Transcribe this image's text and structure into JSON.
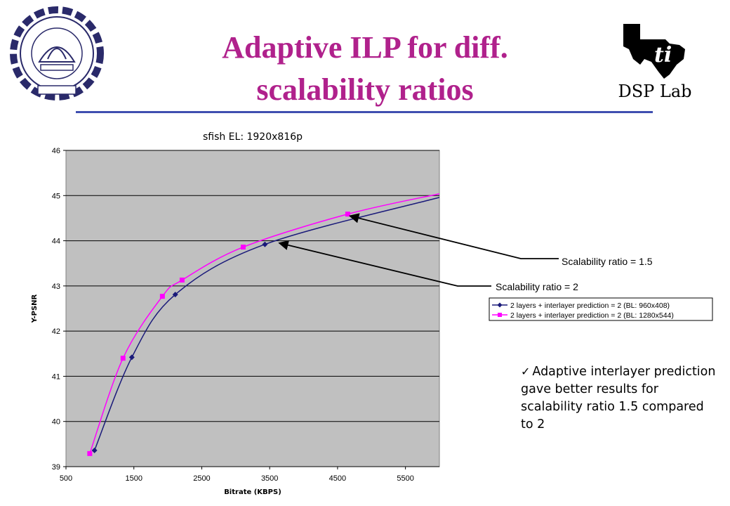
{
  "slide": {
    "title_line1": "Adaptive ILP for diff.",
    "title_line2": "scalability ratios",
    "logo_left_text": "INDIAN INSTITUTE OF TECHNOLOGY BOMBAY",
    "logo_right_text": "DSP Lab",
    "bullet_text": "Adaptive interlayer prediction gave better results for scalability ratio 1.5 compared to 2",
    "colors": {
      "title": "#b0218c",
      "rule": "#3f4fb0"
    }
  },
  "chart_data": {
    "type": "line",
    "title": "sfish EL: 1920x816p",
    "xlabel": "Bitrate (KBPS)",
    "ylabel": "Y-PSNR",
    "xlim": [
      500,
      6000
    ],
    "ylim": [
      39,
      46
    ],
    "x_ticks": [
      500,
      1500,
      2500,
      3500,
      4500,
      5500
    ],
    "y_ticks": [
      39,
      40,
      41,
      42,
      43,
      44,
      45,
      46
    ],
    "grid": true,
    "legend_position": "right",
    "series": [
      {
        "name": "2 layers + interlayer prediction = 2 (BL: 960x408)",
        "color": "#1a1a7a",
        "marker": "diamond",
        "x": [
          920,
          1470,
          2110,
          3430
        ],
        "y": [
          39.36,
          41.42,
          42.81,
          43.92
        ],
        "trend_end": [
          6000,
          44.96
        ]
      },
      {
        "name": "2 layers + interlayer prediction = 2 (BL: 1280x544)",
        "color": "#ff00ff",
        "marker": "square",
        "x": [
          850,
          1340,
          1920,
          2210,
          3110,
          4650
        ],
        "y": [
          39.29,
          41.4,
          42.77,
          43.13,
          43.86,
          44.59
        ],
        "trend_end": [
          6000,
          45.04
        ]
      }
    ],
    "annotations": [
      {
        "text": "Scalability ratio = 1.5",
        "target": [
          4680,
          44.55
        ]
      },
      {
        "text": "Scalability ratio = 2",
        "target": [
          3640,
          43.95
        ]
      }
    ],
    "plot_background": "#c0c0c0"
  }
}
